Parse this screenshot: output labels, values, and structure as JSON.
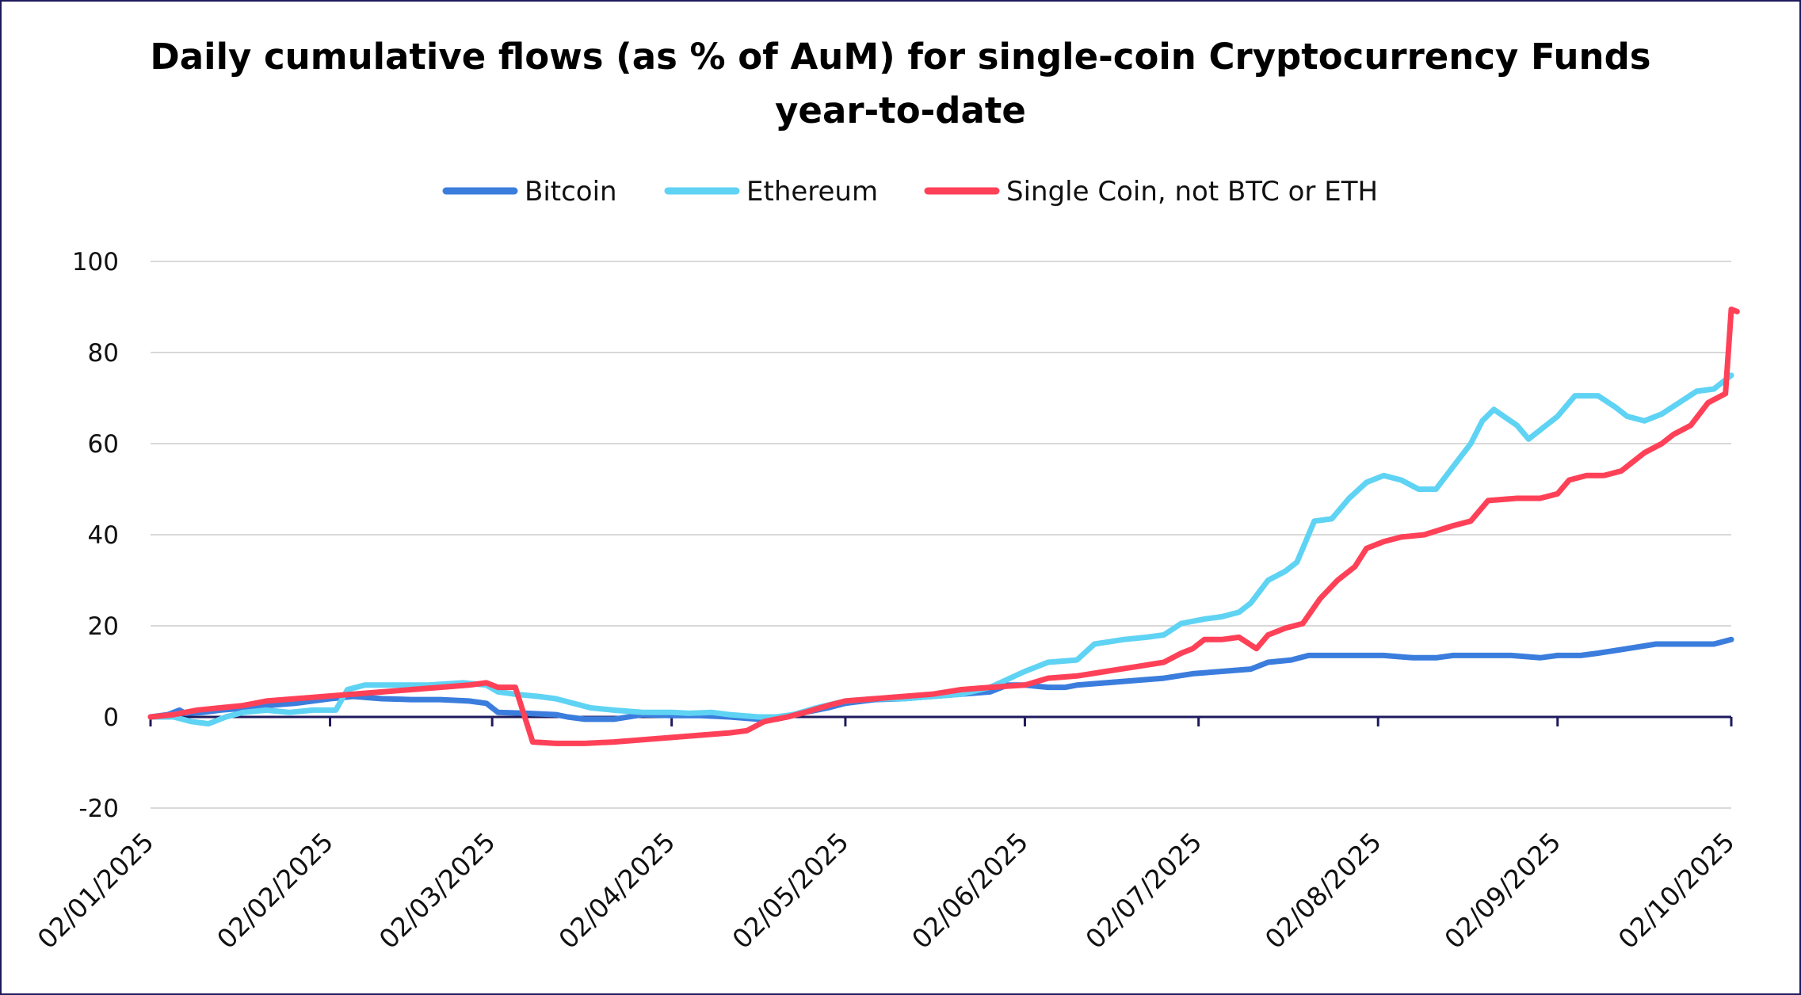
{
  "chart_data": {
    "type": "line",
    "title": "Daily cumulative flows (as % of AuM) for single-coin Cryptocurrency Funds",
    "subtitle": "year-to-date",
    "xlabel": "",
    "ylabel": "",
    "ylim": [
      -20,
      100
    ],
    "yticks": [
      -20,
      0,
      20,
      40,
      60,
      80,
      100
    ],
    "x_range_days": [
      0,
      273
    ],
    "x_ticks": [
      {
        "label": "02/01/2025",
        "day": 0
      },
      {
        "label": "02/02/2025",
        "day": 31
      },
      {
        "label": "02/03/2025",
        "day": 59
      },
      {
        "label": "02/04/2025",
        "day": 90
      },
      {
        "label": "02/05/2025",
        "day": 120
      },
      {
        "label": "02/06/2025",
        "day": 151
      },
      {
        "label": "02/07/2025",
        "day": 181
      },
      {
        "label": "02/08/2025",
        "day": 212
      },
      {
        "label": "02/09/2025",
        "day": 243
      },
      {
        "label": "02/10/2025",
        "day": 273
      }
    ],
    "legend": {
      "position": "top-center"
    },
    "series": [
      {
        "name": "Bitcoin",
        "color": "#3b7ddd",
        "points": [
          [
            0,
            0
          ],
          [
            3,
            0.5
          ],
          [
            5,
            1.5
          ],
          [
            6,
            0.8
          ],
          [
            9,
            1
          ],
          [
            12,
            1.5
          ],
          [
            15,
            1.8
          ],
          [
            20,
            2.5
          ],
          [
            25,
            3
          ],
          [
            31,
            4
          ],
          [
            35,
            4.5
          ],
          [
            40,
            4
          ],
          [
            45,
            3.8
          ],
          [
            50,
            3.8
          ],
          [
            55,
            3.5
          ],
          [
            58,
            3
          ],
          [
            60,
            1
          ],
          [
            65,
            0.8
          ],
          [
            70,
            0.5
          ],
          [
            72,
            0
          ],
          [
            75,
            -0.5
          ],
          [
            80,
            -0.5
          ],
          [
            85,
            0.5
          ],
          [
            90,
            0.3
          ],
          [
            95,
            0.3
          ],
          [
            100,
            0
          ],
          [
            105,
            -0.5
          ],
          [
            108,
            -0.5
          ],
          [
            110,
            0
          ],
          [
            113,
            1
          ],
          [
            117,
            2
          ],
          [
            120,
            3
          ],
          [
            125,
            3.8
          ],
          [
            130,
            4
          ],
          [
            135,
            4.5
          ],
          [
            140,
            5
          ],
          [
            145,
            5.5
          ],
          [
            148,
            7
          ],
          [
            151,
            7
          ],
          [
            155,
            6.5
          ],
          [
            158,
            6.5
          ],
          [
            160,
            7
          ],
          [
            165,
            7.5
          ],
          [
            170,
            8
          ],
          [
            175,
            8.5
          ],
          [
            180,
            9.5
          ],
          [
            185,
            10
          ],
          [
            190,
            10.5
          ],
          [
            193,
            12
          ],
          [
            197,
            12.5
          ],
          [
            200,
            13.5
          ],
          [
            205,
            13.5
          ],
          [
            210,
            13.5
          ],
          [
            213,
            13.5
          ],
          [
            218,
            13
          ],
          [
            222,
            13
          ],
          [
            225,
            13.5
          ],
          [
            230,
            13.5
          ],
          [
            235,
            13.5
          ],
          [
            240,
            13
          ],
          [
            243,
            13.5
          ],
          [
            247,
            13.5
          ],
          [
            250,
            14
          ],
          [
            255,
            15
          ],
          [
            260,
            16
          ],
          [
            265,
            16
          ],
          [
            270,
            16
          ],
          [
            273,
            17
          ]
        ]
      },
      {
        "name": "Ethereum",
        "color": "#5fd3f3",
        "points": [
          [
            0,
            0
          ],
          [
            4,
            0
          ],
          [
            7,
            -1
          ],
          [
            10,
            -1.5
          ],
          [
            13,
            0
          ],
          [
            16,
            1
          ],
          [
            20,
            1.5
          ],
          [
            24,
            1
          ],
          [
            28,
            1.5
          ],
          [
            32,
            1.5
          ],
          [
            34,
            6
          ],
          [
            37,
            7
          ],
          [
            42,
            7
          ],
          [
            48,
            7
          ],
          [
            54,
            7.5
          ],
          [
            58,
            7
          ],
          [
            60,
            5.5
          ],
          [
            63,
            5
          ],
          [
            67,
            4.5
          ],
          [
            70,
            4
          ],
          [
            73,
            3
          ],
          [
            76,
            2
          ],
          [
            80,
            1.5
          ],
          [
            85,
            1
          ],
          [
            90,
            1
          ],
          [
            93,
            0.8
          ],
          [
            97,
            1
          ],
          [
            100,
            0.5
          ],
          [
            105,
            0
          ],
          [
            108,
            0
          ],
          [
            111,
            0.5
          ],
          [
            115,
            2
          ],
          [
            120,
            3.5
          ],
          [
            125,
            4
          ],
          [
            130,
            4
          ],
          [
            135,
            4.5
          ],
          [
            140,
            5
          ],
          [
            145,
            6.5
          ],
          [
            151,
            10
          ],
          [
            155,
            12
          ],
          [
            160,
            12.5
          ],
          [
            163,
            16
          ],
          [
            168,
            17
          ],
          [
            172,
            17.5
          ],
          [
            175,
            18
          ],
          [
            178,
            20.5
          ],
          [
            182,
            21.5
          ],
          [
            185,
            22
          ],
          [
            188,
            23
          ],
          [
            190,
            25
          ],
          [
            193,
            30
          ],
          [
            196,
            32
          ],
          [
            198,
            34
          ],
          [
            201,
            43
          ],
          [
            204,
            43.5
          ],
          [
            207,
            48
          ],
          [
            210,
            51.5
          ],
          [
            213,
            53
          ],
          [
            216,
            52
          ],
          [
            219,
            50
          ],
          [
            222,
            50
          ],
          [
            225,
            55
          ],
          [
            228,
            60
          ],
          [
            230,
            65
          ],
          [
            232,
            67.5
          ],
          [
            236,
            64
          ],
          [
            238,
            61
          ],
          [
            241,
            64
          ],
          [
            243,
            66
          ],
          [
            246,
            70.5
          ],
          [
            250,
            70.5
          ],
          [
            253,
            68
          ],
          [
            255,
            66
          ],
          [
            258,
            65
          ],
          [
            261,
            66.5
          ],
          [
            264,
            69
          ],
          [
            267,
            71.5
          ],
          [
            270,
            72
          ],
          [
            273,
            75
          ]
        ]
      },
      {
        "name": "Single Coin, not BTC or ETH",
        "color": "#ff4158",
        "points": [
          [
            0,
            0
          ],
          [
            4,
            0.5
          ],
          [
            8,
            1.5
          ],
          [
            12,
            2
          ],
          [
            16,
            2.5
          ],
          [
            20,
            3.5
          ],
          [
            25,
            4
          ],
          [
            30,
            4.5
          ],
          [
            35,
            5
          ],
          [
            40,
            5.5
          ],
          [
            45,
            6
          ],
          [
            50,
            6.5
          ],
          [
            55,
            7
          ],
          [
            58,
            7.5
          ],
          [
            60,
            6.5
          ],
          [
            63,
            6.5
          ],
          [
            66,
            -5.5
          ],
          [
            70,
            -5.8
          ],
          [
            75,
            -5.8
          ],
          [
            80,
            -5.5
          ],
          [
            85,
            -5
          ],
          [
            90,
            -4.5
          ],
          [
            95,
            -4
          ],
          [
            100,
            -3.5
          ],
          [
            103,
            -3
          ],
          [
            106,
            -1
          ],
          [
            110,
            0
          ],
          [
            113,
            1
          ],
          [
            117,
            2.5
          ],
          [
            120,
            3.5
          ],
          [
            125,
            4
          ],
          [
            130,
            4.5
          ],
          [
            135,
            5
          ],
          [
            140,
            6
          ],
          [
            145,
            6.5
          ],
          [
            151,
            7
          ],
          [
            155,
            8.5
          ],
          [
            160,
            9
          ],
          [
            165,
            10
          ],
          [
            170,
            11
          ],
          [
            175,
            12
          ],
          [
            178,
            14
          ],
          [
            180,
            15
          ],
          [
            182,
            17
          ],
          [
            185,
            17
          ],
          [
            188,
            17.5
          ],
          [
            191,
            15
          ],
          [
            193,
            18
          ],
          [
            196,
            19.5
          ],
          [
            199,
            20.5
          ],
          [
            202,
            26
          ],
          [
            205,
            30
          ],
          [
            208,
            33
          ],
          [
            210,
            37
          ],
          [
            213,
            38.5
          ],
          [
            216,
            39.5
          ],
          [
            220,
            40
          ],
          [
            225,
            42
          ],
          [
            228,
            43
          ],
          [
            231,
            47.5
          ],
          [
            236,
            48
          ],
          [
            240,
            48
          ],
          [
            243,
            49
          ],
          [
            245,
            52
          ],
          [
            248,
            53
          ],
          [
            251,
            53
          ],
          [
            254,
            54
          ],
          [
            256,
            56
          ],
          [
            258,
            58
          ],
          [
            261,
            60
          ],
          [
            263,
            62
          ],
          [
            266,
            64
          ],
          [
            269,
            69
          ],
          [
            272,
            71
          ],
          [
            273,
            89.5
          ],
          [
            274,
            89
          ]
        ]
      }
    ]
  }
}
